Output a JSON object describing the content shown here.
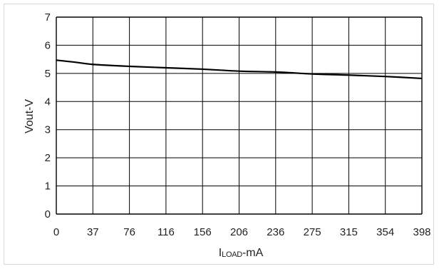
{
  "chart_data": {
    "type": "line",
    "title": "",
    "xlabel_prefix": "I",
    "xlabel_sub": "LOAD",
    "xlabel_suffix": "-mA",
    "ylabel": "Vout-V",
    "x_categories": [
      "0",
      "37",
      "76",
      "116",
      "156",
      "206",
      "236",
      "275",
      "315",
      "354",
      "398"
    ],
    "y_ticks": [
      "0",
      "1",
      "2",
      "3",
      "4",
      "5",
      "6",
      "7"
    ],
    "ylim": [
      0,
      7
    ],
    "grid": true,
    "series": [
      {
        "points": [
          {
            "x_index": 0,
            "y": 5.47
          },
          {
            "x_index": 0.5,
            "y": 5.4
          },
          {
            "x_index": 1,
            "y": 5.32
          },
          {
            "x_index": 2,
            "y": 5.25
          },
          {
            "x_index": 3,
            "y": 5.2
          },
          {
            "x_index": 4,
            "y": 5.15
          },
          {
            "x_index": 5,
            "y": 5.08
          },
          {
            "x_index": 6,
            "y": 5.05
          },
          {
            "x_index": 7,
            "y": 4.98
          },
          {
            "x_index": 8,
            "y": 4.94
          },
          {
            "x_index": 9,
            "y": 4.89
          },
          {
            "x_index": 10,
            "y": 4.82
          }
        ],
        "color": "#000000"
      }
    ],
    "grid_color": "#000000"
  }
}
